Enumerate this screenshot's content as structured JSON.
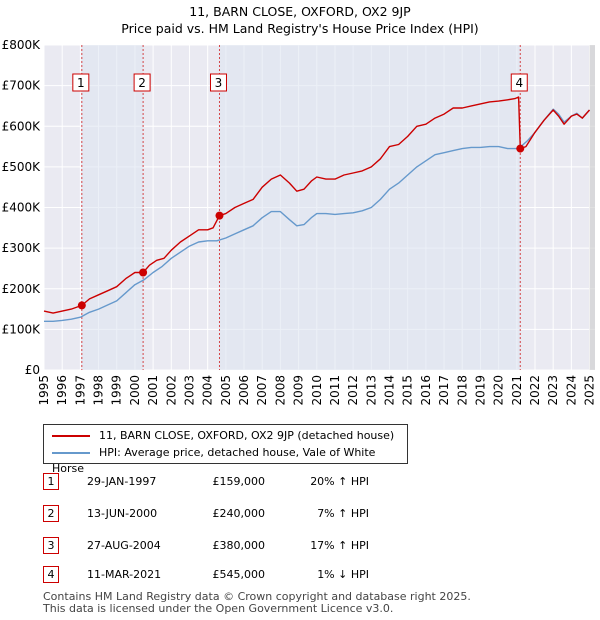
{
  "title_line1": "11, BARN CLOSE, OXFORD, OX2 9JP",
  "title_line2": "Price paid vs. HM Land Registry's House Price Index (HPI)",
  "chart_data": {
    "type": "line",
    "title": "Price paid vs. HM Land Registry's House Price Index (HPI)",
    "xlabel": "",
    "ylabel": "",
    "xlim": [
      1995,
      2025.3
    ],
    "ylim": [
      0,
      800000
    ],
    "x_ticks": [
      1995,
      1996,
      1997,
      1998,
      1999,
      2000,
      2001,
      2002,
      2003,
      2004,
      2005,
      2006,
      2007,
      2008,
      2009,
      2010,
      2011,
      2012,
      2013,
      2014,
      2015,
      2016,
      2017,
      2018,
      2019,
      2020,
      2021,
      2022,
      2023,
      2024,
      2025
    ],
    "y_ticks": [
      0,
      100000,
      200000,
      300000,
      400000,
      500000,
      600000,
      700000,
      800000
    ],
    "y_tick_labels": [
      "£0",
      "£100K",
      "£200K",
      "£300K",
      "£400K",
      "£500K",
      "£600K",
      "£700K",
      "£800K"
    ],
    "grid": true,
    "series": [
      {
        "name": "11, BARN CLOSE, OXFORD, OX2 9JP (detached house)",
        "color": "#cc0000",
        "x": [
          1995.0,
          1995.5,
          1996.0,
          1996.5,
          1997.08,
          1997.5,
          1998.0,
          1998.5,
          1999.0,
          1999.5,
          2000.0,
          2000.45,
          2000.8,
          2001.2,
          2001.6,
          2002.0,
          2002.5,
          2003.0,
          2003.5,
          2004.0,
          2004.3,
          2004.65,
          2005.0,
          2005.5,
          2006.0,
          2006.5,
          2007.0,
          2007.5,
          2008.0,
          2008.5,
          2008.9,
          2009.3,
          2009.7,
          2010.0,
          2010.5,
          2011.0,
          2011.5,
          2012.0,
          2012.5,
          2013.0,
          2013.5,
          2014.0,
          2014.5,
          2015.0,
          2015.5,
          2016.0,
          2016.5,
          2017.0,
          2017.5,
          2018.0,
          2018.5,
          2019.0,
          2019.5,
          2020.0,
          2020.5,
          2020.9,
          2021.1,
          2021.19,
          2021.5,
          2022.0,
          2022.5,
          2023.0,
          2023.3,
          2023.6,
          2024.0,
          2024.3,
          2024.6,
          2025.0
        ],
        "values": [
          145000,
          140000,
          145000,
          150000,
          159000,
          175000,
          185000,
          195000,
          205000,
          225000,
          240000,
          240000,
          258000,
          270000,
          275000,
          295000,
          315000,
          330000,
          345000,
          345000,
          350000,
          380000,
          385000,
          400000,
          410000,
          420000,
          450000,
          470000,
          480000,
          460000,
          440000,
          445000,
          465000,
          475000,
          470000,
          470000,
          480000,
          485000,
          490000,
          500000,
          520000,
          550000,
          555000,
          575000,
          600000,
          605000,
          620000,
          630000,
          645000,
          645000,
          650000,
          655000,
          660000,
          662000,
          665000,
          668000,
          672000,
          545000,
          550000,
          585000,
          615000,
          640000,
          625000,
          605000,
          625000,
          630000,
          620000,
          640000
        ]
      },
      {
        "name": "HPI: Average price, detached house, Vale of White Horse",
        "color": "#6699cc",
        "x": [
          1995.0,
          1995.5,
          1996.0,
          1996.5,
          1997.0,
          1997.5,
          1998.0,
          1998.5,
          1999.0,
          1999.5,
          2000.0,
          2000.5,
          2001.0,
          2001.5,
          2002.0,
          2002.5,
          2003.0,
          2003.5,
          2004.0,
          2004.5,
          2005.0,
          2005.5,
          2006.0,
          2006.5,
          2007.0,
          2007.5,
          2008.0,
          2008.5,
          2008.9,
          2009.3,
          2009.7,
          2010.0,
          2010.5,
          2011.0,
          2011.5,
          2012.0,
          2012.5,
          2013.0,
          2013.5,
          2014.0,
          2014.5,
          2015.0,
          2015.5,
          2016.0,
          2016.5,
          2017.0,
          2017.5,
          2018.0,
          2018.5,
          2019.0,
          2019.5,
          2020.0,
          2020.5,
          2021.0,
          2021.3,
          2021.6,
          2022.0,
          2022.5,
          2023.0,
          2023.3,
          2023.6,
          2024.0,
          2024.3,
          2024.6,
          2025.0
        ],
        "values": [
          120000,
          120000,
          122000,
          125000,
          130000,
          142000,
          150000,
          160000,
          170000,
          190000,
          210000,
          222000,
          240000,
          255000,
          275000,
          290000,
          305000,
          315000,
          318000,
          318000,
          325000,
          335000,
          345000,
          355000,
          375000,
          390000,
          390000,
          370000,
          355000,
          358000,
          375000,
          385000,
          385000,
          383000,
          385000,
          387000,
          392000,
          400000,
          420000,
          445000,
          460000,
          480000,
          500000,
          515000,
          530000,
          535000,
          540000,
          545000,
          548000,
          548000,
          550000,
          550000,
          545000,
          545000,
          553000,
          565000,
          585000,
          615000,
          642000,
          630000,
          610000,
          625000,
          632000,
          620000,
          640000
        ]
      }
    ],
    "transactions": [
      {
        "id": "1",
        "x": 1997.08,
        "value": 159000
      },
      {
        "id": "2",
        "x": 2000.45,
        "value": 240000
      },
      {
        "id": "3",
        "x": 2004.65,
        "value": 380000
      },
      {
        "id": "4",
        "x": 2021.19,
        "value": 545000
      }
    ]
  },
  "legend": {
    "series1": "11, BARN CLOSE, OXFORD, OX2 9JP (detached house)",
    "series2": "HPI: Average price, detached house, Vale of White Horse",
    "series1_color": "#cc0000",
    "series2_color": "#6699cc"
  },
  "sales": [
    {
      "id": "1",
      "date": "29-JAN-1997",
      "price": "£159,000",
      "hpi": "20% ↑ HPI"
    },
    {
      "id": "2",
      "date": "13-JUN-2000",
      "price": "£240,000",
      "hpi": "7% ↑ HPI"
    },
    {
      "id": "3",
      "date": "27-AUG-2004",
      "price": "£380,000",
      "hpi": "17% ↑ HPI"
    },
    {
      "id": "4",
      "date": "11-MAR-2021",
      "price": "£545,000",
      "hpi": "1% ↓ HPI"
    }
  ],
  "footer": {
    "line1": "Contains HM Land Registry data © Crown copyright and database right 2025.",
    "line2": "This data is licensed under the Open Government Licence v3.0."
  }
}
